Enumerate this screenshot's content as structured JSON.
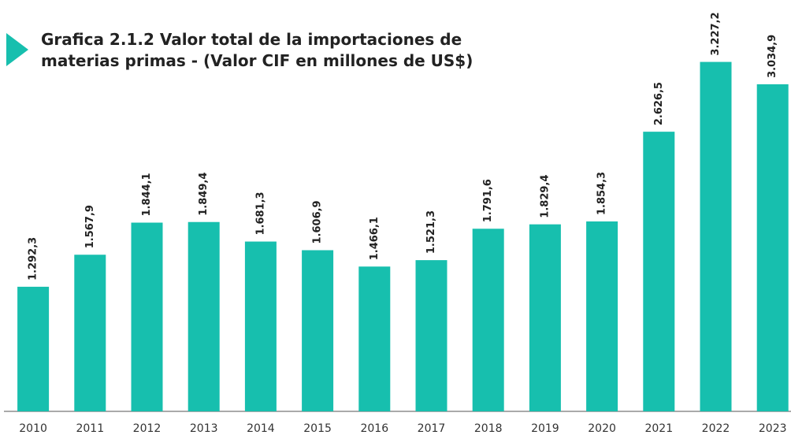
{
  "chart_data": {
    "type": "bar",
    "title": "Grafica 2.1.2 Valor total de la importaciones de materias primas - (Valor CIF en millones de US$)",
    "categories": [
      "2010",
      "2011",
      "2012",
      "2013",
      "2014",
      "2015",
      "2016",
      "2017",
      "2018",
      "2019",
      "2020",
      "2021",
      "2022",
      "2023"
    ],
    "values": [
      1292.3,
      1567.9,
      1844.1,
      1849.4,
      1681.3,
      1606.9,
      1466.1,
      1521.3,
      1791.6,
      1829.4,
      1854.3,
      2626.5,
      3227.2,
      3034.9
    ],
    "value_labels": [
      "1.292,3",
      "1.567,9",
      "1.844,1",
      "1.849,4",
      "1.681,3",
      "1.606,9",
      "1.466,1",
      "1.521,3",
      "1.791,6",
      "1.829,4",
      "1.854,3",
      "2.626,5",
      "3.227,2",
      "3.034,9"
    ],
    "color": "#17bfae",
    "ylim": [
      220,
      3760
    ]
  }
}
